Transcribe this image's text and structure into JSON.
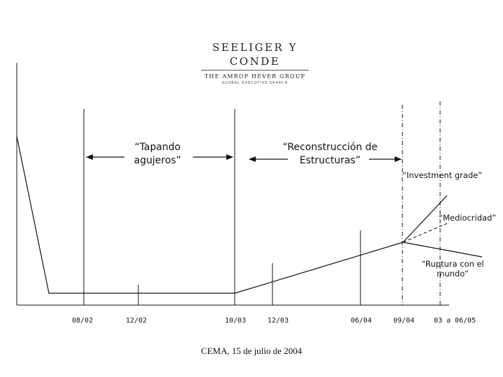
{
  "logo": {
    "name": "SEELIGER Y CONDE",
    "group": "THE AMROP HEVER GROUP",
    "tagline": "GLOBAL EXECUTIVE SEARCH"
  },
  "phases": [
    {
      "id": "tapando",
      "line1": "“Tapando",
      "line2": "agujeros”"
    },
    {
      "id": "reconstruccion",
      "line1": "“Reconstrucción de",
      "line2": "Estructuras”"
    }
  ],
  "scenarios": {
    "investment": "“Investment grade”",
    "mediocridad": "“Mediocridad”",
    "ruptura_line1": "“Ruptura con el",
    "ruptura_line2": "mundo”"
  },
  "ticks": [
    "08/02",
    "12/02",
    "10/03",
    "12/03",
    "06/04",
    "09/04",
    "03 a 06/05"
  ],
  "footer": "CEMA, 15 de julio de 2004"
}
